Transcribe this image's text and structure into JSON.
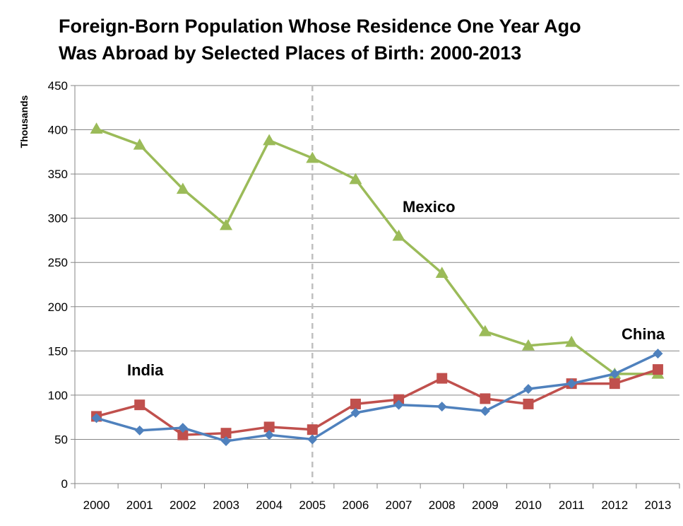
{
  "chart_data": {
    "type": "line",
    "title": "Foreign-Born Population Whose Residence One Year Ago Was Abroad by Selected Places of Birth: 2000-2013",
    "title_lines": [
      "Foreign-Born Population Whose Residence One Year Ago",
      "Was Abroad by Selected Places of Birth: 2000-2013"
    ],
    "xlabel": "",
    "ylabel": "Thousands",
    "ylim": [
      0,
      450
    ],
    "yticks": [
      0,
      50,
      100,
      150,
      200,
      250,
      300,
      350,
      400,
      450
    ],
    "grid": true,
    "categories": [
      "2000",
      "2001",
      "2002",
      "2003",
      "2004",
      "2005",
      "2006",
      "2007",
      "2008",
      "2009",
      "2010",
      "2011",
      "2012",
      "2013"
    ],
    "reference_line": {
      "category": "2005",
      "style": "dashed",
      "color": "#bfbfbf"
    },
    "series": [
      {
        "name": "China",
        "color": "#4f81bd",
        "marker": "diamond",
        "values": [
          74,
          60,
          63,
          48,
          55,
          50,
          80,
          89,
          87,
          82,
          107,
          113,
          124,
          147
        ]
      },
      {
        "name": "India",
        "color": "#c0504d",
        "marker": "square",
        "values": [
          76,
          89,
          55,
          57,
          64,
          61,
          90,
          95,
          119,
          96,
          90,
          113,
          113,
          129
        ]
      },
      {
        "name": "Mexico",
        "color": "#9bbb59",
        "marker": "triangle",
        "values": [
          401,
          383,
          333,
          292,
          388,
          368,
          344,
          280,
          238,
          172,
          156,
          160,
          124,
          124
        ]
      }
    ],
    "annotations": [
      "Mexico",
      "India",
      "China"
    ]
  }
}
